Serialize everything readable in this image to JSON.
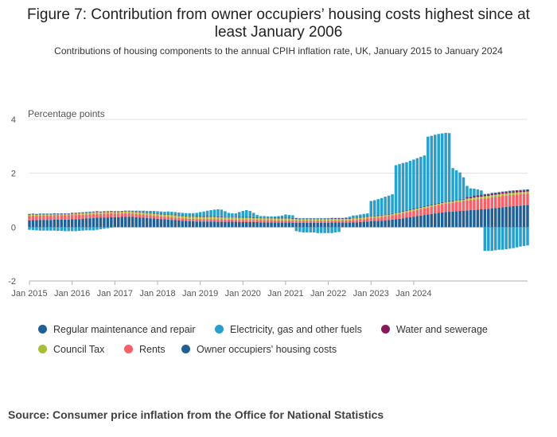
{
  "title": "Figure 7: Contribution from owner occupiers’ housing costs highest since at least January 2006",
  "subtitle": "Contributions of housing components to the annual CPIH inflation rate, UK, January 2015 to January 2024",
  "source": "Source: Consumer price inflation from the Office for National Statistics",
  "chart_data": {
    "type": "bar",
    "stacked": true,
    "ylabel": "Percentage points",
    "ylim": [
      -2,
      4
    ],
    "yticks": [
      "4",
      "2",
      "0",
      "-2"
    ],
    "ytick_values": [
      4,
      2,
      0,
      -2
    ],
    "xtick_labels": [
      "Jan 2015",
      "Jan 2016",
      "Jan 2017",
      "Jan 2018",
      "Jan 2019",
      "Jan 2020",
      "Jan 2021",
      "Jan 2022",
      "Jan 2023",
      "Jan 2024"
    ],
    "months_span": [
      "Jan 2015",
      "Jan 2024"
    ],
    "grid": true,
    "legend_position": "bottom",
    "series": [
      {
        "name": "Regular maintenance and repair",
        "color": "#206095",
        "legend_color": "#206095"
      },
      {
        "name": "Electricity, gas and other fuels",
        "color": "#27a0cc",
        "legend_color": "#27a0cc"
      },
      {
        "name": "Water and sewerage",
        "color": "#871a5b",
        "legend_color": "#871a5b"
      },
      {
        "name": "Council Tax",
        "color": "#a8bd3a",
        "legend_color": "#a8bd3a"
      },
      {
        "name": "Rents",
        "color": "#f66068",
        "legend_color": "#f66068"
      },
      {
        "name": "Owner occupiers' housing costs",
        "color": "#206095",
        "legend_color": "#206095"
      }
    ],
    "values": {
      "owner_occupiers": [
        0.25,
        0.26,
        0.26,
        0.27,
        0.27,
        0.27,
        0.27,
        0.28,
        0.28,
        0.28,
        0.28,
        0.28,
        0.29,
        0.29,
        0.3,
        0.31,
        0.32,
        0.33,
        0.34,
        0.35,
        0.35,
        0.36,
        0.36,
        0.37,
        0.37,
        0.37,
        0.38,
        0.38,
        0.38,
        0.38,
        0.37,
        0.36,
        0.35,
        0.34,
        0.33,
        0.32,
        0.31,
        0.3,
        0.29,
        0.28,
        0.27,
        0.26,
        0.25,
        0.24,
        0.23,
        0.22,
        0.22,
        0.21,
        0.21,
        0.21,
        0.21,
        0.21,
        0.21,
        0.2,
        0.2,
        0.2,
        0.2,
        0.2,
        0.2,
        0.19,
        0.19,
        0.19,
        0.19,
        0.19,
        0.19,
        0.18,
        0.18,
        0.18,
        0.18,
        0.17,
        0.17,
        0.17,
        0.17,
        0.17,
        0.16,
        0.16,
        0.16,
        0.16,
        0.16,
        0.16,
        0.16,
        0.16,
        0.16,
        0.16,
        0.16,
        0.17,
        0.17,
        0.17,
        0.17,
        0.17,
        0.17,
        0.18,
        0.18,
        0.19,
        0.2,
        0.21,
        0.22,
        0.23,
        0.23,
        0.24,
        0.25,
        0.26,
        0.28,
        0.3,
        0.31,
        0.33,
        0.35,
        0.37,
        0.39,
        0.41,
        0.43,
        0.45,
        0.47,
        0.49,
        0.51,
        0.53,
        0.55,
        0.56,
        0.57,
        0.58,
        0.59,
        0.6,
        0.61,
        0.62,
        0.63,
        0.64,
        0.65,
        0.66,
        0.67,
        0.68,
        0.7,
        0.71,
        0.72,
        0.74,
        0.75,
        0.77,
        0.78,
        0.79,
        0.8,
        0.81,
        0.82
      ],
      "rents": [
        0.17,
        0.17,
        0.16,
        0.16,
        0.16,
        0.16,
        0.16,
        0.16,
        0.16,
        0.16,
        0.16,
        0.16,
        0.16,
        0.16,
        0.16,
        0.15,
        0.15,
        0.15,
        0.15,
        0.15,
        0.14,
        0.14,
        0.14,
        0.14,
        0.13,
        0.13,
        0.13,
        0.13,
        0.13,
        0.12,
        0.12,
        0.12,
        0.12,
        0.11,
        0.11,
        0.11,
        0.11,
        0.1,
        0.1,
        0.1,
        0.1,
        0.1,
        0.09,
        0.09,
        0.09,
        0.09,
        0.09,
        0.09,
        0.09,
        0.09,
        0.09,
        0.09,
        0.09,
        0.09,
        0.09,
        0.08,
        0.08,
        0.08,
        0.08,
        0.08,
        0.08,
        0.08,
        0.08,
        0.08,
        0.08,
        0.08,
        0.08,
        0.08,
        0.08,
        0.08,
        0.08,
        0.08,
        0.08,
        0.08,
        0.08,
        0.08,
        0.07,
        0.07,
        0.07,
        0.07,
        0.07,
        0.07,
        0.07,
        0.07,
        0.07,
        0.07,
        0.07,
        0.07,
        0.08,
        0.08,
        0.08,
        0.09,
        0.09,
        0.1,
        0.1,
        0.11,
        0.12,
        0.12,
        0.13,
        0.14,
        0.15,
        0.15,
        0.16,
        0.17,
        0.18,
        0.19,
        0.2,
        0.21,
        0.22,
        0.23,
        0.24,
        0.25,
        0.26,
        0.27,
        0.28,
        0.29,
        0.3,
        0.31,
        0.32,
        0.33,
        0.34,
        0.35,
        0.36,
        0.37,
        0.37,
        0.38,
        0.39,
        0.39,
        0.4,
        0.4,
        0.41,
        0.41,
        0.42,
        0.42,
        0.42,
        0.42,
        0.42,
        0.42,
        0.42,
        0.42,
        0.42
      ],
      "council_tax": [
        0.04,
        0.04,
        0.04,
        0.04,
        0.04,
        0.04,
        0.04,
        0.04,
        0.04,
        0.04,
        0.04,
        0.04,
        0.05,
        0.05,
        0.05,
        0.06,
        0.06,
        0.06,
        0.06,
        0.06,
        0.06,
        0.06,
        0.06,
        0.06,
        0.06,
        0.06,
        0.06,
        0.07,
        0.07,
        0.07,
        0.07,
        0.07,
        0.07,
        0.07,
        0.07,
        0.07,
        0.07,
        0.07,
        0.07,
        0.08,
        0.08,
        0.08,
        0.08,
        0.08,
        0.08,
        0.08,
        0.08,
        0.08,
        0.08,
        0.08,
        0.08,
        0.08,
        0.08,
        0.08,
        0.08,
        0.08,
        0.08,
        0.08,
        0.08,
        0.08,
        0.08,
        0.08,
        0.08,
        0.07,
        0.07,
        0.07,
        0.07,
        0.07,
        0.07,
        0.07,
        0.07,
        0.07,
        0.07,
        0.07,
        0.07,
        0.07,
        0.07,
        0.07,
        0.07,
        0.07,
        0.07,
        0.07,
        0.07,
        0.07,
        0.07,
        0.07,
        0.07,
        0.07,
        0.06,
        0.06,
        0.06,
        0.06,
        0.06,
        0.06,
        0.06,
        0.06,
        0.05,
        0.05,
        0.05,
        0.05,
        0.05,
        0.05,
        0.05,
        0.05,
        0.05,
        0.05,
        0.05,
        0.05,
        0.05,
        0.05,
        0.05,
        0.05,
        0.05,
        0.05,
        0.05,
        0.05,
        0.05,
        0.05,
        0.05,
        0.05,
        0.05,
        0.05,
        0.05,
        0.07,
        0.07,
        0.08,
        0.08,
        0.08,
        0.08,
        0.08,
        0.08,
        0.08,
        0.08,
        0.08,
        0.08,
        0.08,
        0.08,
        0.08,
        0.08,
        0.08,
        0.08
      ],
      "water": [
        0.01,
        0.01,
        0.01,
        0.01,
        0.01,
        0.01,
        0.01,
        0.01,
        0.01,
        0.01,
        0.01,
        0.01,
        0.01,
        0.01,
        0.01,
        0.01,
        0.01,
        0.01,
        0.01,
        0.01,
        0.01,
        0.01,
        0.01,
        0.01,
        0.01,
        0.01,
        0.01,
        0.01,
        0.01,
        0.01,
        0.01,
        0.01,
        0.01,
        0.01,
        0.01,
        0.01,
        0.01,
        0.01,
        0.01,
        0.01,
        0.01,
        0.01,
        0.01,
        0.01,
        0.01,
        0.01,
        0.01,
        0.01,
        0.01,
        0.01,
        0.01,
        0.01,
        0.01,
        0.01,
        0.01,
        0.01,
        0.01,
        0.01,
        0.01,
        0.01,
        0.01,
        0.01,
        0.01,
        0.01,
        0.01,
        0.01,
        0.01,
        0.01,
        0.01,
        0.01,
        0.01,
        0.01,
        0.01,
        0.01,
        0.01,
        0.01,
        0.01,
        0.01,
        0.01,
        0.01,
        0.01,
        0.01,
        0.01,
        0.01,
        0.01,
        0.01,
        0.01,
        0.01,
        0.01,
        0.01,
        0.01,
        0.01,
        0.01,
        0.01,
        0.01,
        0.01,
        0.01,
        0.01,
        0.01,
        0.01,
        0.01,
        0.01,
        0.01,
        0.01,
        0.01,
        0.01,
        0.01,
        0.01,
        0.01,
        0.01,
        0.01,
        0.01,
        0.01,
        0.01,
        0.01,
        0.01,
        0.01,
        0.01,
        0.01,
        0.01,
        0.01,
        0.01,
        0.01,
        0.04,
        0.04,
        0.05,
        0.05,
        0.05,
        0.05,
        0.05,
        0.05,
        0.05,
        0.05,
        0.05,
        0.05,
        0.05,
        0.05,
        0.05,
        0.05,
        0.05,
        0.05
      ],
      "maintenance": [
        0.02,
        0.02,
        0.02,
        0.02,
        0.02,
        0.02,
        0.02,
        0.02,
        0.02,
        0.02,
        0.02,
        0.02,
        0.02,
        0.02,
        0.02,
        0.02,
        0.02,
        0.02,
        0.02,
        0.02,
        0.02,
        0.02,
        0.02,
        0.02,
        0.02,
        0.02,
        0.02,
        0.02,
        0.02,
        0.02,
        0.02,
        0.02,
        0.02,
        0.02,
        0.02,
        0.02,
        0.02,
        0.02,
        0.02,
        0.02,
        0.02,
        0.02,
        0.02,
        0.02,
        0.02,
        0.02,
        0.02,
        0.02,
        0.02,
        0.02,
        0.02,
        0.02,
        0.02,
        0.02,
        0.02,
        0.02,
        0.02,
        0.02,
        0.02,
        0.02,
        0.02,
        0.02,
        0.02,
        0.02,
        0.02,
        0.02,
        0.02,
        0.02,
        0.02,
        0.02,
        0.02,
        0.02,
        0.02,
        0.02,
        0.02,
        0.02,
        0.02,
        0.02,
        0.02,
        0.02,
        0.02,
        0.02,
        0.02,
        0.02,
        0.02,
        0.02,
        0.02,
        0.02,
        0.02,
        0.02,
        0.02,
        0.02,
        0.02,
        0.02,
        0.02,
        0.02,
        0.02,
        0.02,
        0.02,
        0.02,
        0.02,
        0.02,
        0.02,
        0.02,
        0.02,
        0.02,
        0.02,
        0.02,
        0.02,
        0.02,
        0.02,
        0.02,
        0.02,
        0.02,
        0.02,
        0.02,
        0.02,
        0.02,
        0.02,
        0.02,
        0.02,
        0.02,
        0.02,
        0.03,
        0.03,
        0.03,
        0.03,
        0.03,
        0.03,
        0.03,
        0.03,
        0.03,
        0.03,
        0.03,
        0.03,
        0.03,
        0.03,
        0.03,
        0.03,
        0.03,
        0.03
      ],
      "electricity": [
        -0.1,
        -0.11,
        -0.12,
        -0.13,
        -0.13,
        -0.13,
        -0.13,
        -0.13,
        -0.14,
        -0.14,
        -0.15,
        -0.15,
        -0.15,
        -0.15,
        -0.14,
        -0.13,
        -0.12,
        -0.12,
        -0.12,
        -0.1,
        -0.08,
        -0.06,
        -0.04,
        -0.02,
        0.0,
        0.0,
        0.0,
        0.0,
        0.0,
        0.01,
        0.02,
        0.03,
        0.04,
        0.05,
        0.06,
        0.07,
        0.07,
        0.08,
        0.08,
        0.09,
        0.09,
        0.09,
        0.09,
        0.09,
        0.09,
        0.1,
        0.1,
        0.12,
        0.15,
        0.17,
        0.2,
        0.22,
        0.24,
        0.26,
        0.25,
        0.2,
        0.14,
        0.12,
        0.12,
        0.18,
        0.22,
        0.25,
        0.22,
        0.16,
        0.08,
        0.05,
        0.05,
        0.04,
        0.04,
        0.05,
        0.06,
        0.08,
        0.12,
        0.1,
        0.1,
        -0.15,
        -0.18,
        -0.2,
        -0.2,
        -0.2,
        -0.2,
        -0.22,
        -0.22,
        -0.22,
        -0.22,
        -0.22,
        -0.2,
        -0.18,
        0.0,
        0.02,
        0.05,
        0.07,
        0.08,
        0.09,
        0.1,
        0.1,
        0.55,
        0.57,
        0.6,
        0.62,
        0.65,
        0.68,
        0.7,
        1.75,
        1.77,
        1.78,
        1.78,
        1.8,
        1.82,
        1.84,
        1.86,
        1.88,
        2.55,
        2.55,
        2.56,
        2.56,
        2.55,
        2.55,
        2.52,
        1.2,
        1.1,
        1.0,
        0.8,
        0.4,
        0.3,
        0.25,
        0.2,
        0.15,
        -0.88,
        -0.88,
        -0.88,
        -0.86,
        -0.84,
        -0.84,
        -0.82,
        -0.8,
        -0.78,
        -0.75,
        -0.72,
        -0.7,
        -0.68,
        -0.65,
        -0.62,
        -0.6,
        -0.58
      ]
    }
  }
}
